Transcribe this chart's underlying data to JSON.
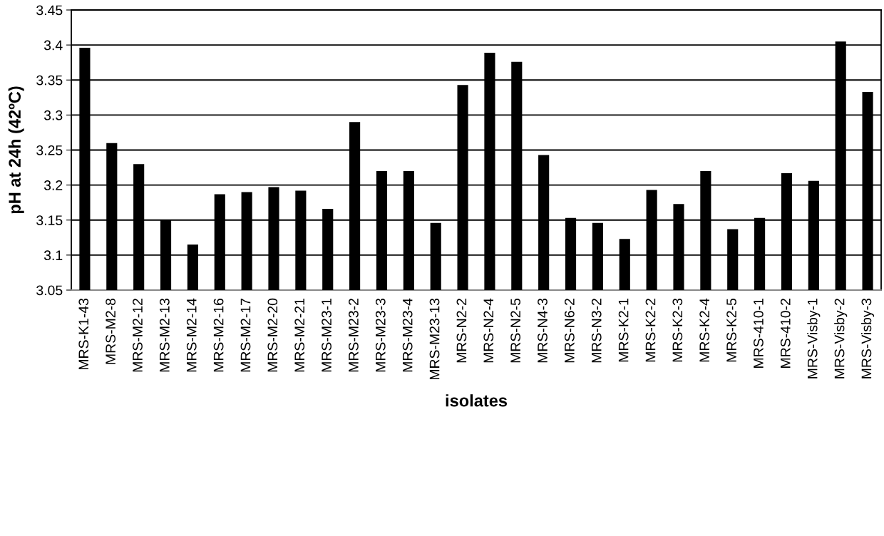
{
  "chart_data": {
    "type": "bar",
    "xlabel": "isolates",
    "ylabel": "pH at 24h (42ºC)",
    "categories": [
      "MRS-K1-43",
      "MRS-M2-8",
      "MRS-M2-12",
      "MRS-M2-13",
      "MRS-M2-14",
      "MRS-M2-16",
      "MRS-M2-17",
      "MRS-M2-20",
      "MRS-M2-21",
      "MRS-M23-1",
      "MRS-M23-2",
      "MRS-M23-3",
      "MRS-M23-4",
      "MRS-M23-13",
      "MRS-N2-2",
      "MRS-N2-4",
      "MRS-N2-5",
      "MRS-N4-3",
      "MRS-N6-2",
      "MRS-N3-2",
      "MRS-K2-1",
      "MRS-K2-2",
      "MRS-K2-3",
      "MRS-K2-4",
      "MRS-K2-5",
      "MRS-410-1",
      "MRS-410-2",
      "MRS-Visby-1",
      "MRS-Visby-2",
      "MRS-Visby-3"
    ],
    "values": [
      3.396,
      3.26,
      3.23,
      3.15,
      3.115,
      3.187,
      3.19,
      3.197,
      3.192,
      3.166,
      3.29,
      3.22,
      3.22,
      3.146,
      3.343,
      3.389,
      3.376,
      3.243,
      3.153,
      3.146,
      3.123,
      3.193,
      3.173,
      3.22,
      3.137,
      3.153,
      3.217,
      3.206,
      3.405,
      3.333
    ],
    "color": "#000000",
    "ylim": [
      3.05,
      3.45
    ],
    "yticks": [
      3.05,
      3.1,
      3.15,
      3.2,
      3.25,
      3.3,
      3.35,
      3.4,
      3.45
    ],
    "grid": "y",
    "legend": false
  }
}
